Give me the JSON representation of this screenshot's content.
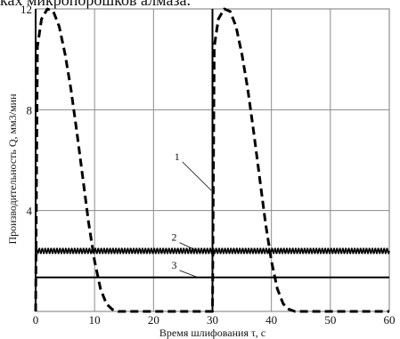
{
  "header": {
    "text": "ках микропорошков алмаза."
  },
  "chart_data": {
    "type": "line",
    "xlabel": "Время шлифования τ, с",
    "ylabel": "Производительность Q, мм3/мин",
    "xlim": [
      0,
      60
    ],
    "ylim": [
      0,
      12
    ],
    "x_ticks": [
      0,
      10,
      20,
      30,
      40,
      50,
      60
    ],
    "y_ticks": [
      4,
      8,
      12
    ],
    "grid": true,
    "series": [
      {
        "name": "1",
        "style": "dashed",
        "color": "#000000",
        "x": [
          0,
          0.3,
          1,
          2,
          3,
          4,
          5,
          6,
          7,
          8,
          9,
          10,
          11,
          12,
          13,
          14,
          15,
          30.0,
          30.3,
          31,
          32,
          33,
          34,
          35,
          36,
          37,
          38,
          39,
          40,
          41,
          42,
          43,
          44,
          45,
          60
        ],
        "y": [
          0,
          10.5,
          11.6,
          12.0,
          11.9,
          11.3,
          10.2,
          8.8,
          7.1,
          5.3,
          3.5,
          2.0,
          0.9,
          0.3,
          0.08,
          0.0,
          0.0,
          0.0,
          10.5,
          11.6,
          12.0,
          11.9,
          11.3,
          10.2,
          8.8,
          7.1,
          5.3,
          3.5,
          2.0,
          0.9,
          0.3,
          0.08,
          0.0,
          0.0,
          0.0
        ]
      },
      {
        "name": "2",
        "style": "wavy",
        "color": "#000000",
        "mean": 2.4,
        "amplitude": 0.1,
        "period": 0.5
      },
      {
        "name": "3",
        "style": "solid",
        "color": "#000000",
        "x": [
          0,
          60
        ],
        "y": [
          1.35,
          1.35
        ]
      }
    ],
    "vertical_lines": [
      {
        "x": 0,
        "from": 0,
        "to": 12,
        "style": "solid"
      },
      {
        "x": 30,
        "from": 0,
        "to": 12,
        "style": "solid"
      }
    ],
    "label_markers": [
      {
        "text": "1",
        "x": 24,
        "y": 6.0,
        "tx": 29.8,
        "ty": 4.8
      },
      {
        "text": "2",
        "x": 23.5,
        "y": 2.8,
        "tx": 27,
        "ty": 2.45
      },
      {
        "text": "3",
        "x": 23.5,
        "y": 1.7,
        "tx": 27.5,
        "ty": 1.35
      }
    ]
  }
}
